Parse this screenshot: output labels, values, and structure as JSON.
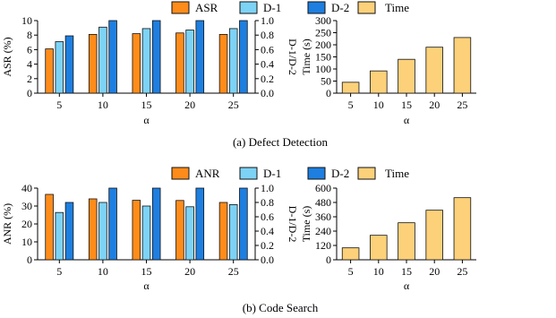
{
  "colors": {
    "asr": "#FF8C1A",
    "d1": "#7DD3F5",
    "d2": "#1E7FE0",
    "time": "#FCD17A",
    "edge": "#111111"
  },
  "panels": [
    {
      "caption": "(a) Defect Detection",
      "legend": [
        "ASR",
        "D-1",
        "D-2",
        "Time"
      ]
    },
    {
      "caption": "(b) Code Search",
      "legend": [
        "ANR",
        "D-1",
        "D-2",
        "Time"
      ]
    }
  ],
  "chart_data": [
    {
      "type": "bar",
      "panel": "(a) Defect Detection",
      "xlabel": "α",
      "ylabel": "ASR (%)",
      "ylabel_right": "D-1/D-2",
      "categories": [
        "5",
        "10",
        "15",
        "20",
        "25"
      ],
      "ylim": [
        0,
        10
      ],
      "yticks": [
        0,
        2,
        4,
        6,
        8,
        10
      ],
      "ylim_right": [
        0,
        1.0
      ],
      "yticks_right": [
        "0.0",
        "0.2",
        "0.4",
        "0.6",
        "0.8",
        "1.0"
      ],
      "series": [
        {
          "name": "ASR",
          "axis": "left",
          "values": [
            6.1,
            8.1,
            8.2,
            8.3,
            8.1
          ]
        },
        {
          "name": "D-1",
          "axis": "right",
          "values": [
            0.71,
            0.91,
            0.89,
            0.87,
            0.89
          ]
        },
        {
          "name": "D-2",
          "axis": "right",
          "values": [
            0.79,
            1.0,
            1.0,
            1.0,
            1.0
          ]
        }
      ]
    },
    {
      "type": "bar",
      "panel": "(a) Defect Detection",
      "xlabel": "α",
      "ylabel": "Time (s)",
      "categories": [
        "5",
        "10",
        "15",
        "20",
        "25"
      ],
      "ylim": [
        0,
        300
      ],
      "yticks": [
        0,
        50,
        100,
        150,
        200,
        250,
        300
      ],
      "series": [
        {
          "name": "Time",
          "values": [
            45,
            92,
            140,
            190,
            230
          ]
        }
      ]
    },
    {
      "type": "bar",
      "panel": "(b) Code Search",
      "xlabel": "α",
      "ylabel": "ANR (%)",
      "ylabel_right": "D-1/D-2",
      "categories": [
        "5",
        "10",
        "15",
        "20",
        "25"
      ],
      "ylim": [
        0,
        40
      ],
      "yticks": [
        0,
        10,
        20,
        30,
        40
      ],
      "ylim_right": [
        0,
        1.0
      ],
      "yticks_right": [
        "0.0",
        "0.2",
        "0.4",
        "0.6",
        "0.8",
        "1.0"
      ],
      "series": [
        {
          "name": "ANR",
          "axis": "left",
          "values": [
            36.5,
            34.0,
            33.2,
            33.1,
            32.0
          ]
        },
        {
          "name": "D-1",
          "axis": "right",
          "values": [
            0.66,
            0.8,
            0.75,
            0.74,
            0.77
          ]
        },
        {
          "name": "D-2",
          "axis": "right",
          "values": [
            0.8,
            1.0,
            1.0,
            1.0,
            1.0
          ]
        }
      ]
    },
    {
      "type": "bar",
      "panel": "(b) Code Search",
      "xlabel": "α",
      "ylabel": "Time (s)",
      "categories": [
        "5",
        "10",
        "15",
        "20",
        "25"
      ],
      "ylim": [
        0,
        600
      ],
      "yticks": [
        0,
        120,
        240,
        360,
        480,
        600
      ],
      "series": [
        {
          "name": "Time",
          "values": [
            100,
            205,
            310,
            415,
            520
          ]
        }
      ]
    }
  ]
}
